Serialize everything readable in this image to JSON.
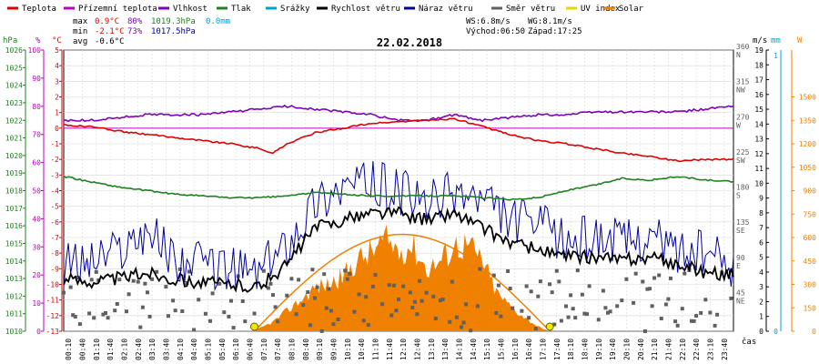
{
  "chart_data": {
    "type": "line",
    "title": "22.02.2018",
    "legend": [
      {
        "name": "Teplota",
        "color": "#e00000"
      },
      {
        "name": "Přízemní teplota",
        "color": "#c000c0"
      },
      {
        "name": "Vlhkost",
        "color": "#8000c0"
      },
      {
        "name": "Tlak",
        "color": "#208020"
      },
      {
        "name": "Srážky",
        "color": "#00a0d0"
      },
      {
        "name": "Rychlost větru",
        "color": "#000000"
      },
      {
        "name": "Náraz větru",
        "color": "#0000a0"
      },
      {
        "name": "Směr větru",
        "color": "#606060"
      },
      {
        "name": "UV index",
        "color": "#e8d800"
      },
      {
        "name": "Solar",
        "color": "#f08000"
      }
    ],
    "stats": {
      "max_label": "max",
      "max_temp": "0.9°C",
      "max_hum": "80%",
      "max_press": "1019.3hPa",
      "max_rain": "0.0mm",
      "min_label": "min",
      "min_temp": "-2.1°C",
      "min_hum": "73%",
      "min_press": "1017.5hPa",
      "avg_label": "avg",
      "avg_temp": "-0.6°C",
      "ws": "WS:6.8m/s",
      "wg": "WG:8.1m/s",
      "sunrise": "Východ:06:50",
      "sunset": "Západ:17:25"
    },
    "axis_units": {
      "hpa": "hPa",
      "pct": "%",
      "degc": "°C",
      "ms": "m/s",
      "mm": "mm",
      "w": "W",
      "time": "čas"
    },
    "axes": {
      "temp": {
        "min": -13,
        "max": 5,
        "ticks": [
          "5",
          "4",
          "3",
          "2",
          "1",
          "0",
          "-1",
          "-2",
          "-3",
          "-4",
          "-5",
          "-6",
          "-7",
          "-8",
          "-9",
          "-10",
          "-11",
          "-12",
          "-13"
        ]
      },
      "humidity": {
        "min": 0,
        "max": 100,
        "ticks": [
          "100",
          "90",
          "80",
          "70",
          "60",
          "50",
          "40",
          "30",
          "20",
          "10",
          "0"
        ]
      },
      "pressure": {
        "min": 1010,
        "max": 1026,
        "ticks": [
          "1026",
          "1025",
          "1024",
          "1023",
          "1022",
          "1021",
          "1020",
          "1019",
          "1018",
          "1017",
          "1016",
          "1015",
          "1014",
          "1013",
          "1012",
          "1011",
          "1010"
        ]
      },
      "wind_dir": {
        "min": 0,
        "max": 360,
        "ticks": [
          {
            "v": 360,
            "deg": "360",
            "dir": "N"
          },
          {
            "v": 315,
            "deg": "315",
            "dir": "NW"
          },
          {
            "v": 270,
            "deg": "270",
            "dir": "W"
          },
          {
            "v": 225,
            "deg": "225",
            "dir": "SW"
          },
          {
            "v": 180,
            "deg": "180",
            "dir": "S"
          },
          {
            "v": 135,
            "deg": "135",
            "dir": "SE"
          },
          {
            "v": 90,
            "deg": "90",
            "dir": "E"
          },
          {
            "v": 45,
            "deg": "45",
            "dir": "NE"
          }
        ]
      },
      "wind_speed": {
        "min": 0,
        "max": 19,
        "ticks": [
          "19",
          "18",
          "17",
          "16",
          "15",
          "14",
          "13",
          "12",
          "11",
          "10",
          "9",
          "8",
          "7",
          "6",
          "5",
          "4",
          "3",
          "2",
          "1",
          "0"
        ]
      },
      "rain": {
        "min": 0,
        "max": 1,
        "ticks": [
          "1",
          "0"
        ]
      },
      "solar": {
        "min": 0,
        "max": 1800,
        "ticks": [
          "1500",
          "1350",
          "1200",
          "1050",
          "900",
          "750",
          "600",
          "450",
          "300",
          "150",
          "0"
        ]
      }
    },
    "x_ticks": [
      "00:10",
      "00:40",
      "01:10",
      "01:40",
      "02:10",
      "02:40",
      "03:10",
      "03:40",
      "04:10",
      "04:40",
      "05:10",
      "05:40",
      "06:10",
      "06:40",
      "07:10",
      "07:40",
      "08:10",
      "08:40",
      "09:10",
      "09:40",
      "10:10",
      "10:40",
      "11:10",
      "11:40",
      "12:10",
      "12:40",
      "13:10",
      "13:40",
      "14:10",
      "14:40",
      "15:10",
      "15:40",
      "16:10",
      "16:40",
      "17:10",
      "17:40",
      "18:10",
      "18:40",
      "19:10",
      "19:40",
      "20:10",
      "20:40",
      "21:10",
      "21:40",
      "22:10",
      "22:40",
      "23:10",
      "23:40"
    ],
    "series": {
      "temperature": {
        "hours": [
          0,
          1,
          2,
          3,
          4,
          5,
          6,
          7,
          7.5,
          8,
          9,
          10,
          11,
          12,
          13,
          14,
          15,
          16,
          17,
          18,
          19,
          20,
          21,
          22,
          23,
          24
        ],
        "values": [
          0.2,
          0.1,
          -0.2,
          -0.4,
          -0.6,
          -0.8,
          -1.0,
          -1.3,
          -1.6,
          -1.0,
          -0.3,
          0.0,
          0.3,
          0.4,
          0.5,
          0.6,
          0.1,
          -0.4,
          -0.8,
          -1.0,
          -1.3,
          -1.6,
          -1.8,
          -2.1,
          -2.0,
          -2.0
        ]
      },
      "humidity": {
        "hours": [
          0,
          1,
          2,
          3,
          4,
          5,
          6,
          7,
          8,
          9,
          10,
          11,
          12,
          13,
          14,
          15,
          16,
          17,
          18,
          19,
          20,
          21,
          22,
          23,
          24
        ],
        "values": [
          75,
          75,
          76,
          77,
          77,
          77,
          78,
          79,
          80,
          79,
          78,
          77,
          75,
          75,
          77,
          75,
          76,
          77,
          77,
          78,
          78,
          78,
          78,
          79,
          80
        ]
      },
      "pressure": {
        "hours": [
          0,
          1,
          2,
          3,
          4,
          5,
          6,
          7,
          8,
          9,
          10,
          11,
          12,
          13,
          14,
          15,
          16,
          17,
          18,
          19,
          20,
          21,
          22,
          23,
          24
        ],
        "values": [
          1018.8,
          1018.5,
          1018.2,
          1018.0,
          1017.8,
          1017.7,
          1017.6,
          1017.6,
          1017.7,
          1017.9,
          1017.8,
          1017.7,
          1017.7,
          1017.7,
          1017.7,
          1017.6,
          1017.5,
          1017.6,
          1018.0,
          1018.3,
          1018.7,
          1018.6,
          1018.8,
          1018.6,
          1018.5
        ]
      },
      "ground_temp": {
        "value": 0
      },
      "wind_speed_avg": {
        "hours": [
          0,
          1,
          2,
          3,
          4,
          5,
          6,
          7,
          8,
          9,
          10,
          11,
          12,
          13,
          14,
          15,
          16,
          17,
          18,
          19,
          20,
          21,
          22,
          23,
          24
        ],
        "values": [
          3.5,
          3.4,
          3.6,
          4.0,
          3.5,
          3.3,
          3.2,
          3.0,
          4.5,
          7.0,
          7.5,
          8.0,
          8.0,
          7.5,
          8.0,
          7.0,
          6.0,
          5.5,
          5.0,
          5.0,
          4.8,
          5.0,
          4.5,
          4.0,
          3.8
        ]
      },
      "wind_gust": {
        "hours": [
          0,
          1,
          2,
          3,
          4,
          5,
          6,
          7,
          8,
          9,
          10,
          11,
          12,
          13,
          14,
          15,
          16,
          17,
          18,
          19,
          20,
          21,
          22,
          23,
          24
        ],
        "values": [
          4.5,
          4.8,
          5.5,
          7.0,
          4.8,
          4.5,
          4.2,
          4.0,
          6.0,
          8.8,
          9.8,
          10.0,
          9.5,
          8.5,
          9.5,
          8.8,
          7.5,
          7.2,
          6.0,
          6.5,
          6.0,
          6.5,
          5.5,
          5.2,
          4.5
        ]
      },
      "wind_dir_avg": {
        "value": 40
      },
      "solar": {
        "hours": [
          6.8,
          7.5,
          8.0,
          8.5,
          9.0,
          9.5,
          10.0,
          10.5,
          11.0,
          11.5,
          12.0,
          12.5,
          13.0,
          13.5,
          14.0,
          14.5,
          15.0,
          15.5,
          16.0,
          16.5,
          17.0,
          17.4
        ],
        "values": [
          0,
          60,
          130,
          200,
          280,
          300,
          350,
          450,
          500,
          580,
          520,
          550,
          400,
          450,
          550,
          550,
          450,
          250,
          160,
          90,
          30,
          0
        ]
      },
      "solar_theoretical": {
        "peak_hour": 12.1,
        "peak_value": 620,
        "rise_hour": 6.83,
        "set_hour": 17.42
      }
    }
  }
}
